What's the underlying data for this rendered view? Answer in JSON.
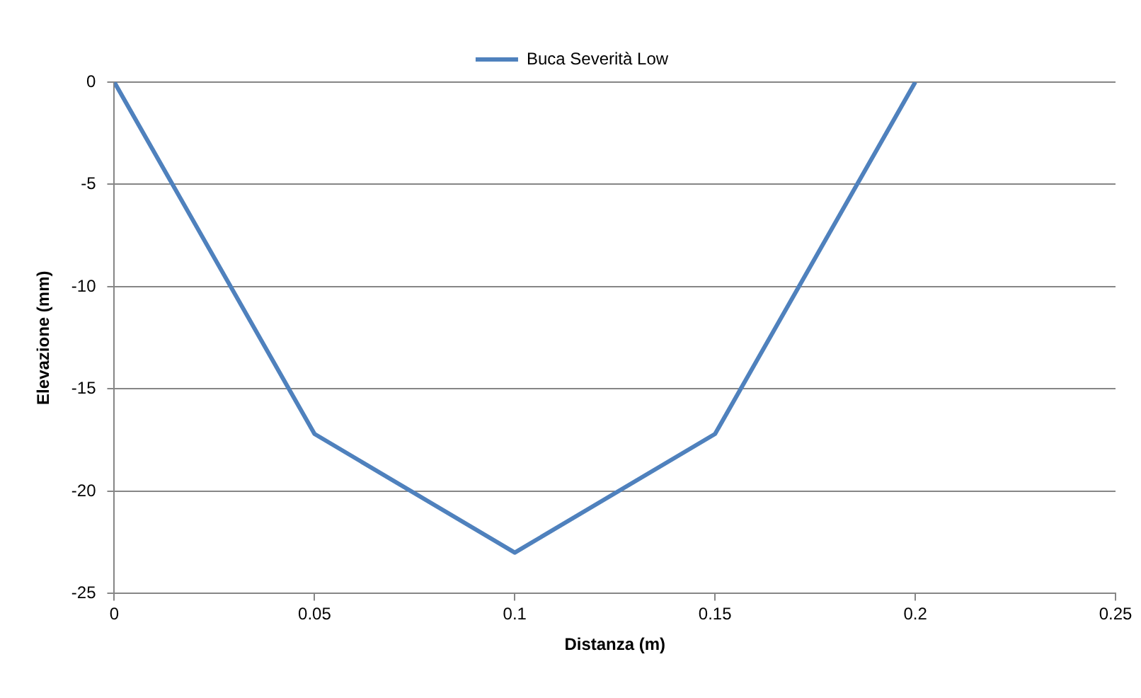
{
  "chart_data": {
    "type": "line",
    "xlabel": "Distanza (m)",
    "ylabel": "Elevazione (mm)",
    "x": [
      0,
      0.05,
      0.1,
      0.15,
      0.2
    ],
    "series": [
      {
        "name": "Buca Severità Low",
        "color": "#4f81bd",
        "values": [
          0,
          -17.2,
          -23,
          -17.2,
          0
        ]
      }
    ],
    "xlim": [
      0,
      0.25
    ],
    "xticks": [
      0,
      0.05,
      0.1,
      0.15,
      0.2,
      0.25
    ],
    "ylim": [
      -25,
      0
    ],
    "yticks": [
      -25,
      -20,
      -15,
      -10,
      -5,
      0
    ],
    "grid": "y",
    "legend": "top",
    "marker": "none",
    "line_style": "solid"
  }
}
